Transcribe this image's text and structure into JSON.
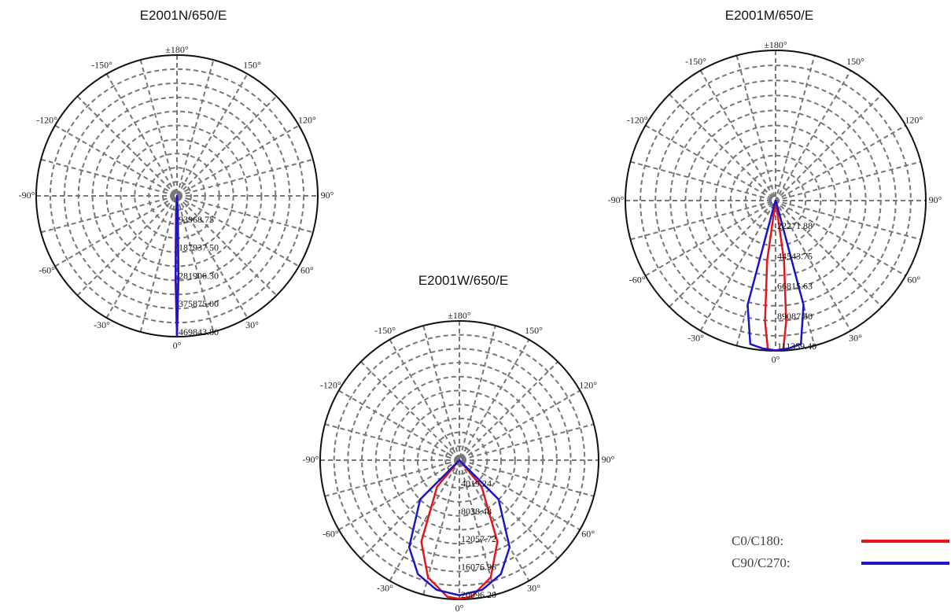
{
  "legend": {
    "c0_label": "C0/C180:",
    "c90_label": "C90/C270:",
    "c0_color": "#e8141c",
    "c90_color": "#1c14c8"
  },
  "chart_data": [
    {
      "type": "polar",
      "title": "E2001N/650/E",
      "angle_labels": [
        "±180°",
        "150°",
        "120°",
        "90°",
        "60°",
        "30°",
        "0°",
        "-30°",
        "-60°",
        "-90°",
        "-120°",
        "-150°"
      ],
      "ring_labels": [
        "93968.75",
        "187937.50",
        "281906.30",
        "375875.00",
        "469843.80"
      ],
      "rmax": 469843.8,
      "grid": true,
      "series": [
        {
          "name": "C0/C180:",
          "color": "#e8141c",
          "angles": [
            -180,
            -8,
            -5,
            -3,
            -1,
            0,
            1,
            3,
            5,
            8,
            180
          ],
          "values": [
            0,
            0,
            2000,
            60000,
            280000,
            469800,
            280000,
            60000,
            2000,
            0,
            0
          ]
        },
        {
          "name": "C90/C270:",
          "color": "#1c14c8",
          "angles": [
            -180,
            -8,
            -5,
            -3,
            -1,
            0,
            1,
            3,
            5,
            8,
            180
          ],
          "values": [
            0,
            0,
            2000,
            50000,
            260000,
            469800,
            260000,
            50000,
            2000,
            0,
            0
          ]
        }
      ]
    },
    {
      "type": "polar",
      "title": "E2001M/650/E",
      "angle_labels": [
        "±180°",
        "150°",
        "120°",
        "90°",
        "60°",
        "30°",
        "0°",
        "-30°",
        "-60°",
        "-90°",
        "-120°",
        "-150°"
      ],
      "ring_labels": [
        "22271.88",
        "44543.75",
        "66815.63",
        "89087.50",
        "111359.40"
      ],
      "rmax": 111359.4,
      "grid": true,
      "series": [
        {
          "name": "C0/C180:",
          "color": "#e8141c",
          "angles": [
            -180,
            -12,
            -8,
            -5,
            -3,
            0,
            3,
            5,
            8,
            12,
            180
          ],
          "values": [
            0,
            0,
            45000,
            90000,
            110000,
            111300,
            110000,
            90000,
            45000,
            0,
            0
          ]
        },
        {
          "name": "C90/C270:",
          "color": "#1c14c8",
          "angles": [
            -180,
            -20,
            -15,
            -10,
            -5,
            0,
            5,
            10,
            15,
            20,
            180
          ],
          "values": [
            0,
            2000,
            80000,
            108000,
            110000,
            111000,
            110000,
            108000,
            80000,
            2000,
            0
          ]
        }
      ]
    },
    {
      "type": "polar",
      "title": "E2001W/650/E",
      "angle_labels": [
        "±180°",
        "150°",
        "120°",
        "90°",
        "60°",
        "30°",
        "0°",
        "-30°",
        "-60°",
        "-90°",
        "-120°",
        "-150°"
      ],
      "ring_labels": [
        "4019.24",
        "8038.48",
        "12057.72",
        "16076.96",
        "20096.20"
      ],
      "rmax": 20096.2,
      "grid": true,
      "series": [
        {
          "name": "C0/C180:",
          "color": "#e8141c",
          "angles": [
            -180,
            -60,
            -40,
            -25,
            -15,
            -5,
            0,
            5,
            15,
            25,
            40,
            60,
            180
          ],
          "values": [
            0,
            0,
            5000,
            13000,
            17500,
            19800,
            20000,
            19800,
            17500,
            13000,
            5000,
            0,
            0
          ]
        },
        {
          "name": "C90/C270:",
          "color": "#1c14c8",
          "angles": [
            -180,
            -60,
            -45,
            -30,
            -20,
            -10,
            0,
            10,
            20,
            30,
            45,
            60,
            180
          ],
          "values": [
            0,
            0,
            8000,
            14500,
            17500,
            19000,
            19500,
            19000,
            17500,
            14500,
            8000,
            0,
            0
          ]
        }
      ]
    }
  ]
}
